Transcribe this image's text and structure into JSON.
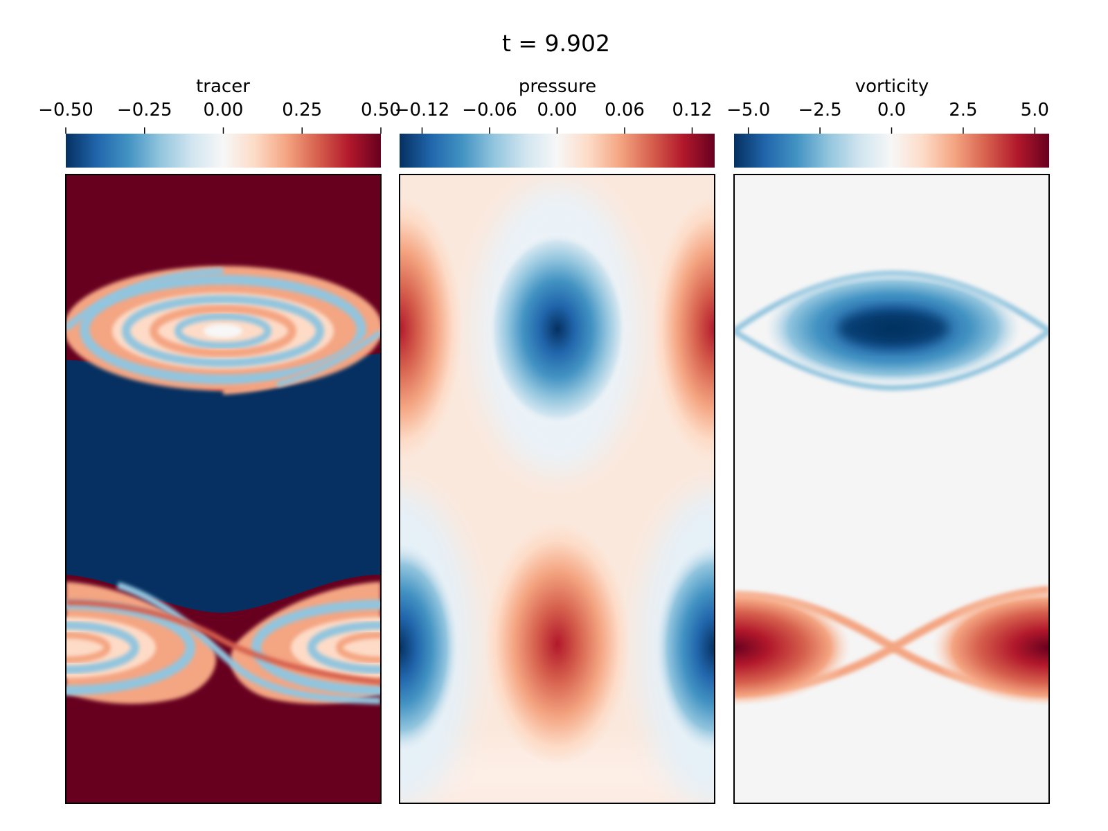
{
  "figure": {
    "title": "t = 9.902"
  },
  "chart_data": [
    {
      "type": "heatmap",
      "title": "tracer",
      "colormap": "RdBu_r",
      "colorbar": {
        "label": "tracer",
        "range": [
          -0.5,
          0.5
        ],
        "ticks": [
          -0.5,
          -0.25,
          0.0,
          0.25,
          0.5
        ],
        "tick_labels": [
          "−0.50",
          "−0.25",
          "0.00",
          "0.25",
          "0.50"
        ]
      },
      "features": [
        {
          "kind": "background",
          "upper_region": 0.5,
          "middle_band": -0.5,
          "lower_region": 0.5
        },
        {
          "kind": "kelvin-helmholtz-roll-up",
          "vertical_position": "upper",
          "center_x": "middle",
          "range": [
            -0.5,
            0.5
          ]
        },
        {
          "kind": "kelvin-helmholtz-roll-up",
          "vertical_position": "lower",
          "center_x": "edges",
          "range": [
            -0.5,
            0.5
          ]
        }
      ],
      "grid": false
    },
    {
      "type": "heatmap",
      "title": "pressure",
      "colormap": "RdBu_r",
      "colorbar": {
        "label": "pressure",
        "range": [
          -0.14,
          0.14
        ],
        "ticks": [
          -0.12,
          -0.06,
          0.0,
          0.06,
          0.12
        ],
        "tick_labels": [
          "−0.12",
          "−0.06",
          "0.00",
          "0.06",
          "0.12"
        ]
      },
      "features": [
        {
          "kind": "low",
          "vertical_position": "upper",
          "center_x": "middle",
          "value": -0.14
        },
        {
          "kind": "high",
          "vertical_position": "upper",
          "center_x": "edges",
          "value": 0.1
        },
        {
          "kind": "high",
          "vertical_position": "lower",
          "center_x": "middle",
          "value": 0.1
        },
        {
          "kind": "low",
          "vertical_position": "lower",
          "center_x": "edges",
          "value": -0.14
        }
      ],
      "grid": false
    },
    {
      "type": "heatmap",
      "title": "vorticity",
      "colormap": "RdBu_r",
      "colorbar": {
        "label": "vorticity",
        "range": [
          -5.5,
          5.5
        ],
        "ticks": [
          -5.0,
          -2.5,
          0.0,
          2.5,
          5.0
        ],
        "tick_labels": [
          "−5.0",
          "−2.5",
          "0.0",
          "2.5",
          "5.0"
        ]
      },
      "features": [
        {
          "kind": "negative-vortex",
          "vertical_position": "upper",
          "center_x": "middle",
          "value": -5.0
        },
        {
          "kind": "positive-vortex",
          "vertical_position": "lower",
          "center_x": "edges",
          "value": 5.5
        }
      ],
      "grid": false
    }
  ]
}
